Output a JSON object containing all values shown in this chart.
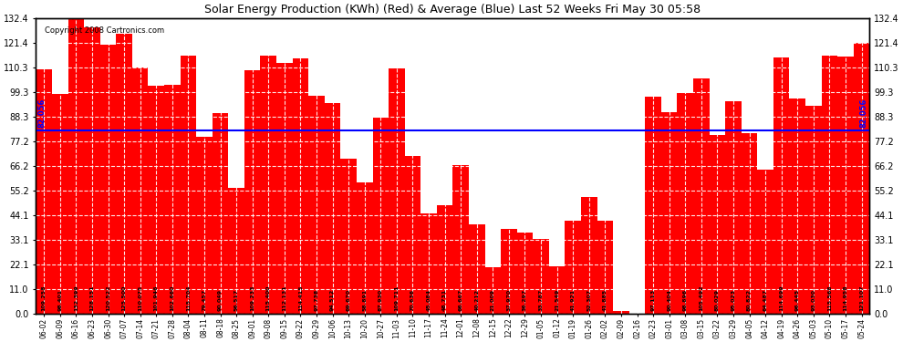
{
  "title": "Solar Energy Production (KWh) (Red) & Average (Blue) Last 52 Weeks Fri May 30 05:58",
  "copyright": "Copyright 2008 Cartronics.com",
  "average": 82.056,
  "bar_color": "#FF0000",
  "avg_line_color": "#0000FF",
  "background_color": "#FFFFFF",
  "plot_bg_color": "#FFFFFF",
  "grid_color": "#AAAAAA",
  "ylim": [
    0,
    132.4
  ],
  "yticks": [
    0.0,
    11.0,
    22.1,
    33.1,
    44.1,
    55.2,
    66.2,
    77.2,
    88.3,
    99.3,
    110.3,
    121.4,
    132.4
  ],
  "categories": [
    "06-02",
    "06-09",
    "06-16",
    "06-23",
    "06-30",
    "07-07",
    "07-14",
    "07-21",
    "07-28",
    "08-04",
    "08-11",
    "08-18",
    "08-25",
    "09-01",
    "09-08",
    "09-15",
    "09-22",
    "09-29",
    "10-06",
    "10-13",
    "10-20",
    "10-27",
    "11-03",
    "11-10",
    "11-17",
    "11-24",
    "12-01",
    "12-08",
    "12-15",
    "12-22",
    "12-29",
    "01-05",
    "01-12",
    "01-19",
    "01-26",
    "02-02",
    "02-09",
    "02-16",
    "02-23",
    "03-01",
    "03-08",
    "03-15",
    "03-22",
    "03-29",
    "04-05",
    "04-12",
    "04-19",
    "04-26",
    "05-03",
    "05-10",
    "05-17",
    "05-24"
  ],
  "values": [
    109.258,
    98.401,
    132.399,
    128.151,
    120.522,
    125.5,
    110.075,
    101.946,
    102.66,
    115.704,
    79.457,
    90.049,
    56.517,
    109.233,
    115.4,
    112.131,
    114.415,
    97.738,
    94.512,
    69.67,
    58.891,
    87.93,
    109.711,
    70.636,
    45.084,
    48.731,
    66.667,
    40.212,
    21.009,
    37.97,
    36.297,
    33.787,
    21.549,
    41.921,
    52.307,
    41.885,
    1.413,
    0.0,
    97.113,
    90.404,
    98.896,
    105.492,
    80.029,
    95.023,
    80.822,
    64.487,
    114.699,
    96.445,
    93.03,
    115.568,
    114.958,
    121.107
  ],
  "bar_labels": [
    "109.258",
    "98.401",
    "132.399",
    "128.151",
    "120.522",
    "125.500",
    "110.075",
    "101.946",
    "102.660",
    "115.704",
    "79.457",
    "90.049",
    "56.517",
    "109.233",
    "115.400",
    "112.131",
    "114.415",
    "97.738",
    "94.512",
    "69.670",
    "58.891",
    "87.930",
    "109.711",
    "70.636",
    "45.084",
    "48.731",
    "66.667",
    "40.212",
    "21.009",
    "37.970",
    "36.297",
    "33.787",
    "21.549",
    "41.921",
    "52.307",
    "41.885",
    "1.413",
    "0.0",
    "97.113",
    "90.404",
    "98.896",
    "105.492",
    "80.029",
    "95.023",
    "80.822",
    "64.487",
    "114.699",
    "96.445",
    "93.030",
    "115.568",
    "114.958",
    "121.107"
  ]
}
